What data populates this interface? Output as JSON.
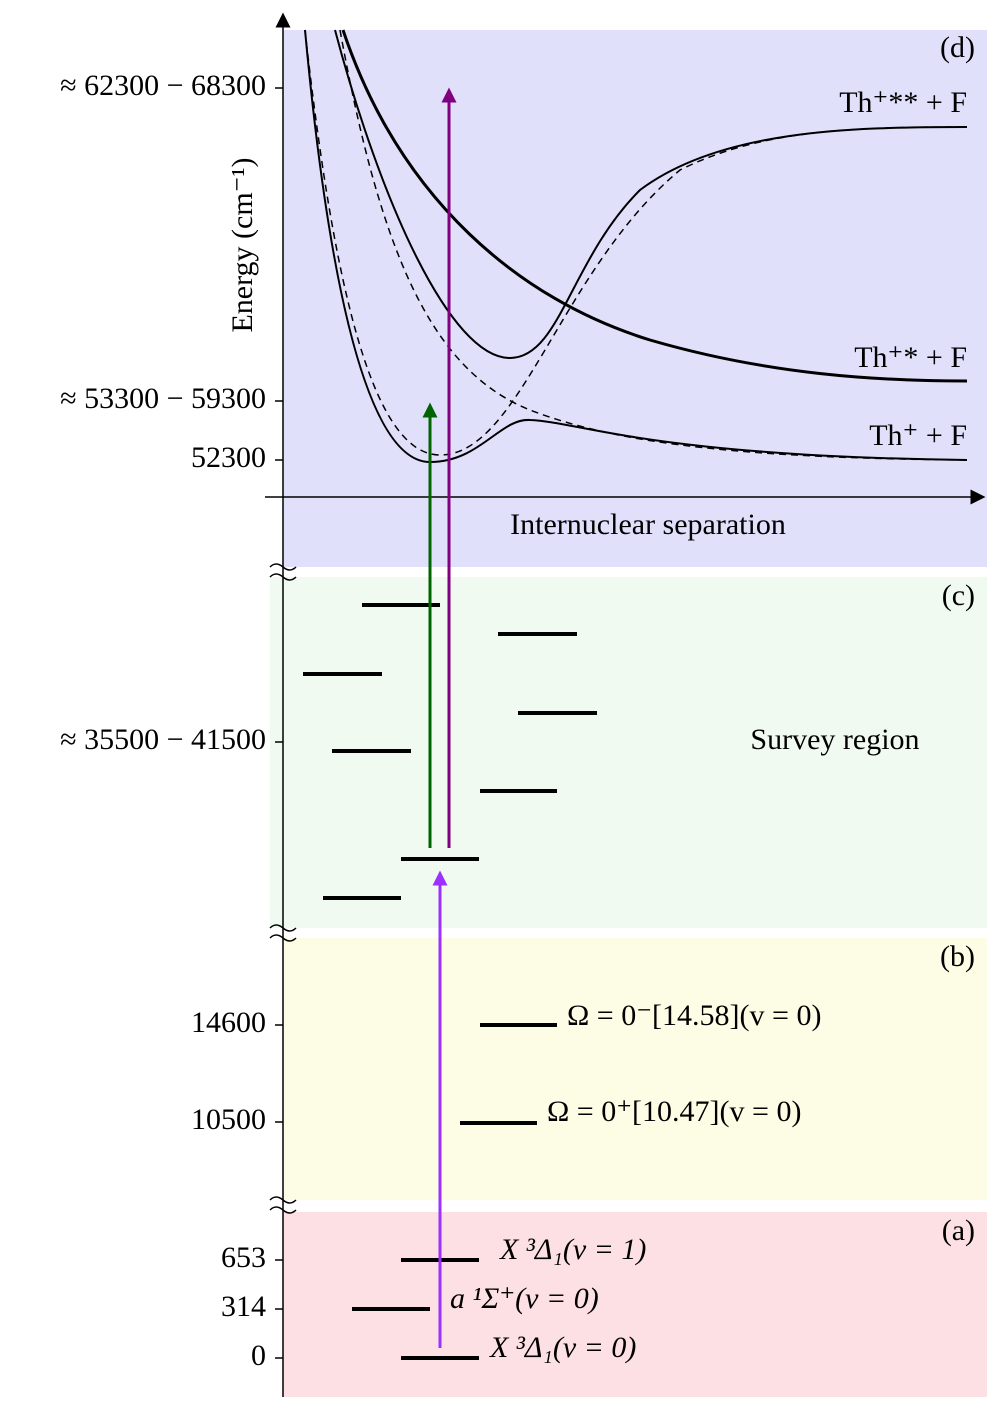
{
  "axis": {
    "label": "Energy (cm⁻¹)",
    "ticks": [
      "≈ 62300 − 68300",
      "≈ 53300 − 59300",
      "52300",
      "≈ 35500 − 41500",
      "14600",
      "10500",
      "653",
      "314",
      "0"
    ]
  },
  "panels": [
    {
      "tag": "(d)",
      "x_label": "Internuclear separation",
      "curve_labels": [
        "Th⁺** + F",
        "Th⁺* + F",
        "Th⁺ + F"
      ]
    },
    {
      "tag": "(c)",
      "label": "Survey region"
    },
    {
      "tag": "(b)",
      "levels": [
        "Ω = 0⁻[14.58](v = 0)",
        "Ω = 0⁺[10.47](v = 0)"
      ]
    },
    {
      "tag": "(a)",
      "levels": [
        "X ³Δ₁(v = 1)",
        "a ¹Σ⁺(v = 0)",
        "X ³Δ₁(v = 0)"
      ]
    }
  ]
}
